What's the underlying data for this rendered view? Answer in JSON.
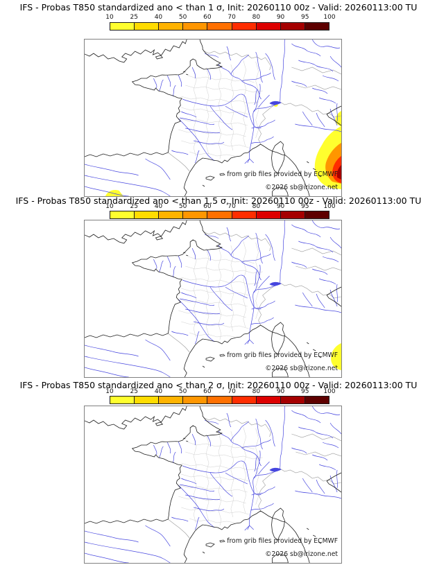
{
  "figure": {
    "colorbar": {
      "ticks": [
        "10",
        "25",
        "40",
        "50",
        "60",
        "70",
        "80",
        "90",
        "95",
        "100"
      ],
      "colors": [
        "#ffff2e",
        "#ffdc00",
        "#ffb300",
        "#ff9600",
        "#ff7000",
        "#ff2d00",
        "#dd0000",
        "#a50000",
        "#5e0000"
      ]
    },
    "credits": {
      "line1": "from grib files provided by ECMWF",
      "line2": "©2026 sb@irizone.net"
    },
    "map_colors": {
      "coastline": "#1c1c1c",
      "rivers": "#4646df",
      "admin_borders": "#c9c9c9",
      "national_borders": "#9a9a9a",
      "frame": "#808080"
    },
    "panels": [
      {
        "id": "panel-1",
        "title": "IFS - Probas T850  standardized ano < than 1 σ, Init: 20260110 00z - Valid: 20260113:00 TU",
        "threshold_sigma": "1"
      },
      {
        "id": "panel-2",
        "title": "IFS - Probas T850  standardized ano < than 1.5 σ, Init: 20260110 00z - Valid: 20260113:00 TU",
        "threshold_sigma": "1.5"
      },
      {
        "id": "panel-3",
        "title": "IFS - Probas T850  standardized ano < than 2 σ, Init: 20260110 00z - Valid: 20260113:00 TU",
        "threshold_sigma": "2"
      }
    ]
  }
}
